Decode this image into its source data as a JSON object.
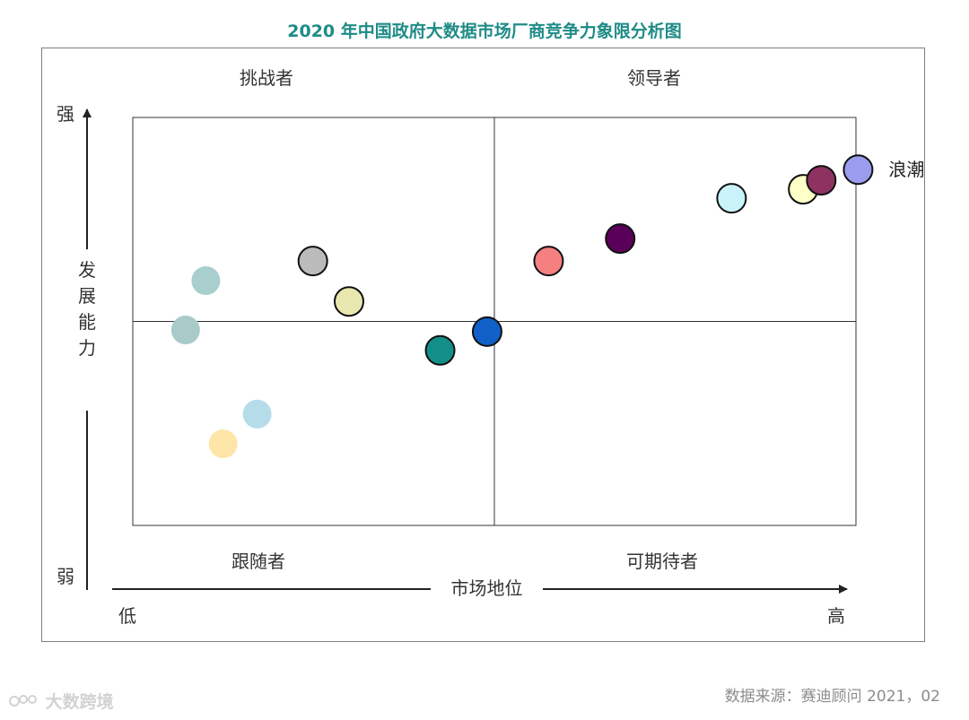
{
  "title": "2020 年中国政府大数据市场厂商竞争力象限分析图",
  "quadrants": {
    "top_left": "挑战者",
    "top_right": "领导者",
    "bottom_left": "跟随者",
    "bottom_right": "可期待者"
  },
  "axes": {
    "y_label": "发展能力",
    "y_high": "强",
    "y_low": "弱",
    "x_label": "市场地位",
    "x_low": "低",
    "x_high": "高"
  },
  "source": "数据来源：赛迪顾问 2021，02",
  "watermark": "大数跨境",
  "chart_data": {
    "type": "scatter",
    "title": "2020 年中国政府大数据市场厂商竞争力象限分析图",
    "xlabel": "市场地位",
    "ylabel": "发展能力",
    "xlim": [
      0,
      100
    ],
    "ylim": [
      0,
      100
    ],
    "grid": false,
    "quadrant_divider": {
      "x": 50,
      "y": 50
    },
    "points": [
      {
        "x": 100.3,
        "y": 87.2,
        "color": "#9b9bf0",
        "label": "浪潮"
      },
      {
        "x": 95.2,
        "y": 84.6,
        "color": "#8e3262",
        "label": ""
      },
      {
        "x": 82.8,
        "y": 80.2,
        "color": "#c9f3f8",
        "label": ""
      },
      {
        "x": 92.7,
        "y": 82.4,
        "color": "#ffffc8",
        "label": ""
      },
      {
        "x": 67.4,
        "y": 70.3,
        "color": "#5a005a",
        "label": ""
      },
      {
        "x": 57.5,
        "y": 64.8,
        "color": "#f58080",
        "label": ""
      },
      {
        "x": 49.0,
        "y": 47.5,
        "color": "#1060c8",
        "label": ""
      },
      {
        "x": 42.5,
        "y": 42.9,
        "color": "#138f89",
        "label": ""
      },
      {
        "x": 29.9,
        "y": 54.9,
        "color": "#e9e7b0",
        "label": ""
      },
      {
        "x": 24.9,
        "y": 64.8,
        "color": "#bbbbbb",
        "label": ""
      },
      {
        "x": 10.1,
        "y": 60.0,
        "color": "#a8cece",
        "label": ""
      },
      {
        "x": 7.3,
        "y": 47.9,
        "color": "#a8cbca",
        "label": ""
      },
      {
        "x": 17.2,
        "y": 27.3,
        "color": "#b6dcea",
        "label": ""
      },
      {
        "x": 12.5,
        "y": 20.0,
        "color": "#fde6a8",
        "label": ""
      }
    ]
  }
}
